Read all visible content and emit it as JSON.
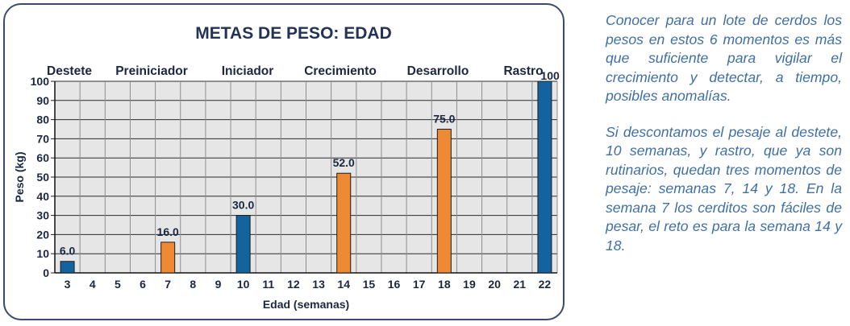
{
  "chart_data": {
    "type": "bar",
    "title": "METAS DE PESO: EDAD",
    "xlabel": "Edad (semanas)",
    "ylabel": "Peso (kg)",
    "ylim": [
      0,
      100
    ],
    "yticks": [
      "0",
      "10",
      "20",
      "30",
      "40",
      "50",
      "60",
      "70",
      "80",
      "90",
      "100"
    ],
    "xticks": [
      "3",
      "4",
      "5",
      "6",
      "7",
      "8",
      "9",
      "10",
      "11",
      "12",
      "13",
      "14",
      "15",
      "16",
      "17",
      "18",
      "19",
      "20",
      "21",
      "22"
    ],
    "stages": [
      "Destete",
      "Preiniciador",
      "Iniciador",
      "Crecimiento",
      "Desarrollo",
      "Rastro"
    ],
    "grid": true,
    "bars": [
      {
        "week": 3,
        "value": 6.0,
        "label": "6.0",
        "color": "#14639e"
      },
      {
        "week": 7,
        "value": 16.0,
        "label": "16.0",
        "color": "#ee8a33"
      },
      {
        "week": 10,
        "value": 30.0,
        "label": "30.0",
        "color": "#14639e"
      },
      {
        "week": 14,
        "value": 52.0,
        "label": "52.0",
        "color": "#ee8a33"
      },
      {
        "week": 18,
        "value": 75.0,
        "label": "75.0",
        "color": "#ee8a33"
      },
      {
        "week": 22,
        "value": 100,
        "label": "100",
        "color": "#14639e"
      }
    ]
  },
  "side_text": {
    "paragraph1": "Conocer para un lote de cerdos los pesos en estos 6 momentos es más que suficiente para vigilar el crecimiento y detectar, a tiempo, posibles anomalías.",
    "paragraph2": "Si descontamos el pesaje al destete, 10 semanas, y rastro, que ya son rutinarios, quedan tres momentos de pesaje: semanas 7, 14 y 18.  En la semana 7 los cerditos son fáciles de pesar, el reto es para la semana 14 y 18."
  }
}
